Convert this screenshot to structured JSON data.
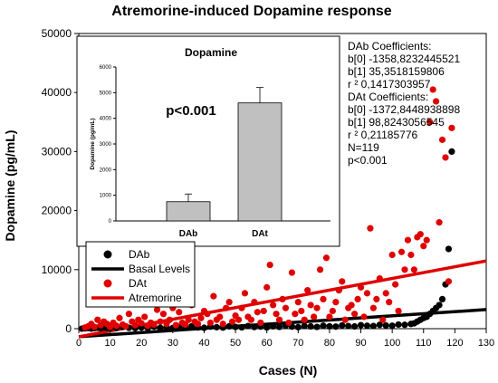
{
  "chart_data": [
    {
      "type": "scatter",
      "title": "Atremorine-induced Dopamine response",
      "xlabel": "Cases (N)",
      "ylabel": "Dopamine (pg/mL)",
      "xlim": [
        0,
        130
      ],
      "ylim": [
        0,
        50000
      ],
      "x_ticks": [
        "0",
        "10",
        "20",
        "30",
        "40",
        "50",
        "60",
        "70",
        "80",
        "90",
        "100",
        "110",
        "120",
        "130"
      ],
      "y_ticks": [
        "0",
        "10000",
        "20000",
        "30000",
        "40000",
        "50000"
      ],
      "legend_position": "lower-left",
      "legend": [
        {
          "label": "DAb",
          "kind": "marker",
          "color": "#000000"
        },
        {
          "label": "Basal Levels",
          "kind": "line",
          "color": "#000000"
        },
        {
          "label": "DAt",
          "kind": "marker",
          "color": "#e00000"
        },
        {
          "label": "Atremorine",
          "kind": "line",
          "color": "#e00000"
        }
      ],
      "series": [
        {
          "name": "DAb",
          "kind": "scatter",
          "color": "#000000",
          "x": [
            1,
            2,
            3,
            4,
            5,
            6,
            7,
            8,
            9,
            10,
            12,
            14,
            16,
            18,
            20,
            22,
            24,
            26,
            28,
            30,
            32,
            34,
            36,
            38,
            40,
            42,
            44,
            46,
            48,
            50,
            52,
            54,
            56,
            58,
            60,
            62,
            64,
            66,
            68,
            70,
            72,
            74,
            76,
            78,
            80,
            82,
            84,
            86,
            88,
            90,
            92,
            94,
            96,
            98,
            100,
            102,
            104,
            106,
            107,
            108,
            109,
            110,
            111,
            112,
            113,
            114,
            115,
            116,
            117,
            118,
            119
          ],
          "y": [
            0,
            50,
            100,
            0,
            80,
            150,
            60,
            200,
            100,
            50,
            120,
            300,
            150,
            80,
            200,
            100,
            350,
            150,
            250,
            120,
            300,
            180,
            400,
            200,
            150,
            350,
            250,
            180,
            400,
            300,
            220,
            450,
            280,
            350,
            200,
            400,
            300,
            500,
            350,
            250,
            450,
            380,
            300,
            500,
            400,
            350,
            550,
            450,
            380,
            600,
            500,
            450,
            650,
            550,
            500,
            700,
            650,
            800,
            900,
            1200,
            1500,
            1800,
            2000,
            2500,
            3000,
            3500,
            4000,
            5000,
            7500,
            13500,
            30000
          ]
        },
        {
          "name": "DAt",
          "kind": "scatter",
          "color": "#e00000",
          "x": [
            2,
            3,
            4,
            5,
            6,
            7,
            8,
            9,
            10,
            11,
            12,
            13,
            14,
            15,
            16,
            17,
            18,
            19,
            20,
            21,
            22,
            23,
            24,
            25,
            26,
            27,
            28,
            29,
            30,
            31,
            32,
            33,
            34,
            35,
            36,
            37,
            38,
            39,
            40,
            41,
            42,
            43,
            44,
            45,
            46,
            47,
            48,
            49,
            50,
            51,
            52,
            53,
            54,
            55,
            56,
            57,
            58,
            59,
            60,
            61,
            62,
            63,
            64,
            65,
            66,
            67,
            68,
            69,
            70,
            71,
            72,
            73,
            74,
            75,
            76,
            77,
            78,
            79,
            80,
            81,
            82,
            83,
            84,
            85,
            86,
            87,
            88,
            89,
            90,
            91,
            92,
            93,
            94,
            95,
            96,
            97,
            98,
            99,
            100,
            101,
            102,
            103,
            104,
            105,
            106,
            107,
            108,
            109,
            110,
            111,
            112,
            113,
            114,
            115,
            116,
            117,
            118,
            119
          ],
          "y": [
            200,
            400,
            800,
            300,
            1500,
            600,
            1200,
            800,
            300,
            1000,
            500,
            1800,
            700,
            400,
            2500,
            1200,
            600,
            1500,
            900,
            2000,
            500,
            1000,
            700,
            3200,
            1200,
            2500,
            800,
            1500,
            3500,
            600,
            2800,
            1000,
            700,
            1500,
            4000,
            1200,
            800,
            1800,
            3000,
            2500,
            1000,
            5500,
            1500,
            2000,
            800,
            3500,
            4500,
            1200,
            2200,
            1500,
            3500,
            6000,
            2000,
            1500,
            4500,
            2800,
            1000,
            3000,
            7000,
            10800,
            4000,
            2500,
            1500,
            5000,
            3500,
            1000,
            9500,
            2500,
            4500,
            3000,
            1500,
            6500,
            4000,
            2000,
            3500,
            10000,
            5000,
            12000,
            2000,
            3000,
            4500,
            6500,
            8000,
            1500,
            3500,
            4000,
            2500,
            5000,
            7000,
            2000,
            6000,
            17000,
            3500,
            5000,
            8500,
            1500,
            6000,
            4500,
            12500,
            7500,
            3000,
            13000,
            10000,
            15000,
            12500,
            10000,
            15500,
            16000,
            14000,
            15000,
            35000,
            40500,
            38500,
            18000,
            32000,
            29000,
            8000,
            34000
          ]
        },
        {
          "name": "Basal Levels",
          "kind": "line",
          "color": "#000000",
          "x": [
            0,
            130
          ],
          "y": [
            -1358.8232445521,
            3237.9508623
          ]
        },
        {
          "name": "Atremorine",
          "kind": "line",
          "color": "#e00000",
          "x": [
            0,
            130
          ],
          "y": [
            -1372.8448938898,
            11474.2448412
          ]
        }
      ],
      "annotation_lines": [
        "DAb   Coefficients:",
        "b[0]   -1358,8232445521",
        "b[1]   35,3518159806",
        "r ²   0,1417303957",
        "DAt   Coefficients:",
        "b[0]   -1372,8448938898",
        "b[1]   98,8243056545",
        "r ²   0,21185776",
        "N=119",
        "p<0.001"
      ]
    },
    {
      "type": "bar",
      "title": "Dopamine",
      "ylabel": "Dopamine (pg/mL)",
      "categories": [
        "DAb",
        "DAt"
      ],
      "values": [
        750,
        4600
      ],
      "error": [
        300,
        600
      ],
      "ylim": [
        0,
        6000
      ],
      "y_ticks": [
        "0",
        "1000",
        "2000",
        "3000",
        "4000",
        "5000",
        "6000"
      ],
      "annotation": "p<0.001",
      "bar_color": "#c0c0c0"
    }
  ]
}
